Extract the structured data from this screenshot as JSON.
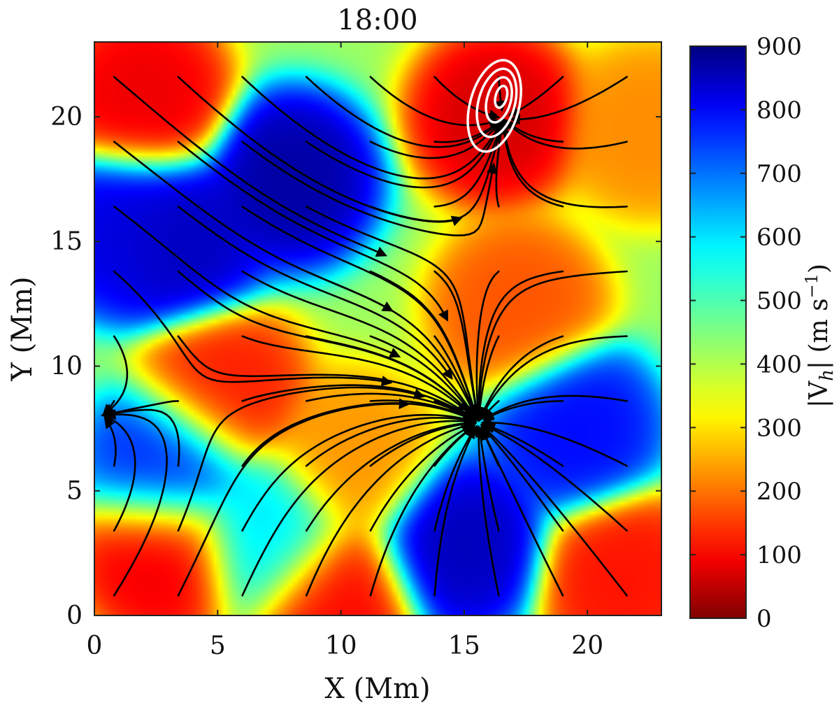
{
  "chart_data": {
    "type": "heatmap",
    "title": "18:00",
    "xlabel": "X (Mm)",
    "ylabel": "Y (Mm)",
    "xlim": [
      0,
      23
    ],
    "ylim": [
      0,
      23
    ],
    "xticks": [
      0,
      5,
      10,
      15,
      20
    ],
    "yticks": [
      0,
      5,
      10,
      15,
      20
    ],
    "colorbar": {
      "label_main": "|V",
      "label_sub": "h",
      "label_end": "| (m s",
      "label_exp": "−1",
      "label_close": ")",
      "range": [
        0,
        900
      ],
      "ticks": [
        0,
        100,
        200,
        300,
        400,
        500,
        600,
        700,
        800,
        900
      ],
      "colormap": "jet"
    },
    "field": {
      "background": 420,
      "features": [
        {
          "x": 2.0,
          "y": 20.8,
          "value": 80
        },
        {
          "x": 16.3,
          "y": 20.0,
          "value": 60
        },
        {
          "x": 5.2,
          "y": 9.0,
          "value": 120
        },
        {
          "x": 17.2,
          "y": 12.3,
          "value": 170
        },
        {
          "x": 2.8,
          "y": 2.5,
          "value": 80
        },
        {
          "x": 9.8,
          "y": 0.6,
          "value": 100
        },
        {
          "x": 21.5,
          "y": 1.5,
          "value": 110
        },
        {
          "x": 22.5,
          "y": 19.5,
          "value": 220
        },
        {
          "x": 10.5,
          "y": 6.3,
          "value": 230
        },
        {
          "x": 8.0,
          "y": 17.5,
          "value": 880
        },
        {
          "x": 3.5,
          "y": 15.0,
          "value": 860
        },
        {
          "x": 1.2,
          "y": 15.5,
          "value": 830
        },
        {
          "x": 14.8,
          "y": 2.8,
          "value": 860
        },
        {
          "x": 3.0,
          "y": 6.0,
          "value": 780
        },
        {
          "x": 19.5,
          "y": 7.5,
          "value": 800
        },
        {
          "x": 7.0,
          "y": 3.2,
          "value": 600
        }
      ]
    },
    "flow_sinks": [
      {
        "x": 15.6,
        "y": 7.7
      },
      {
        "x": 16.6,
        "y": 20.0
      },
      {
        "x": 0.2,
        "y": 8.0
      }
    ],
    "contour_center": {
      "x": 16.5,
      "y": 20.8
    },
    "contour_levels": 4
  }
}
